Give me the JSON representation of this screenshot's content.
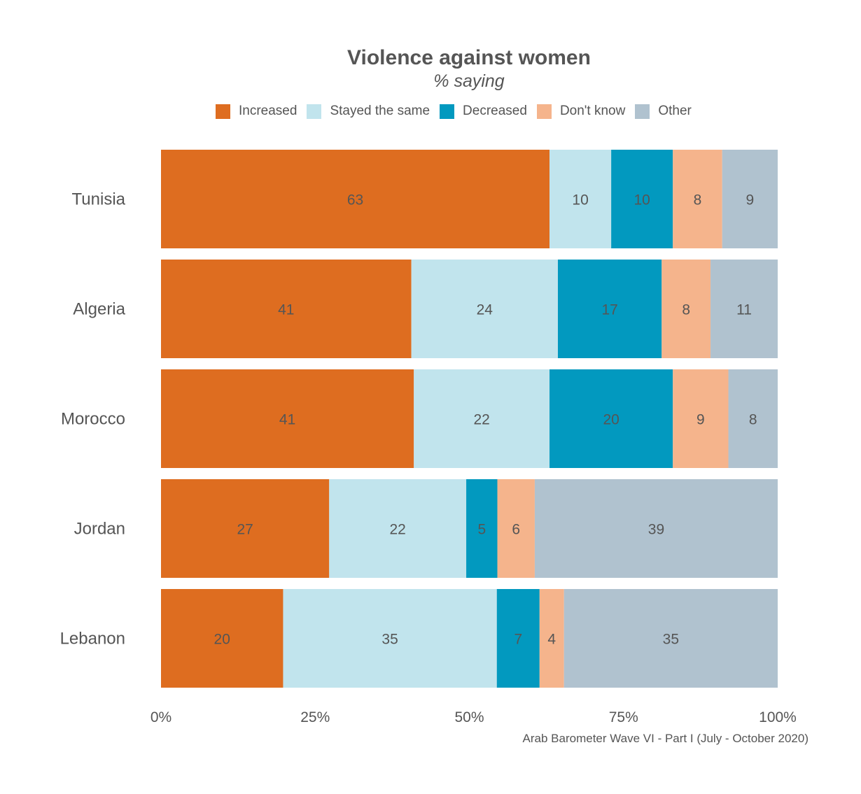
{
  "chart_data": {
    "type": "bar",
    "orientation": "horizontal",
    "stacked": true,
    "title": "Violence against women",
    "subtitle": "% saying",
    "categories": [
      "Tunisia",
      "Algeria",
      "Morocco",
      "Jordan",
      "Lebanon"
    ],
    "series": [
      {
        "name": "Increased",
        "color": "#de6d20",
        "values": [
          63,
          41,
          41,
          27,
          20
        ]
      },
      {
        "name": "Stayed the same",
        "color": "#c1e4ed",
        "values": [
          10,
          24,
          22,
          22,
          35
        ]
      },
      {
        "name": "Decreased",
        "color": "#0299bf",
        "values": [
          10,
          17,
          20,
          5,
          7
        ]
      },
      {
        "name": "Don't know",
        "color": "#f5b48c",
        "values": [
          8,
          8,
          9,
          6,
          4
        ]
      },
      {
        "name": "Other",
        "color": "#b0c2cf",
        "values": [
          9,
          11,
          8,
          39,
          35
        ]
      }
    ],
    "x_ticks": [
      "0%",
      "25%",
      "50%",
      "75%",
      "100%"
    ],
    "xlim": [
      0,
      100
    ],
    "legend_position": "top",
    "source": "Arab Barometer Wave VI - Part I (July - October 2020)"
  }
}
